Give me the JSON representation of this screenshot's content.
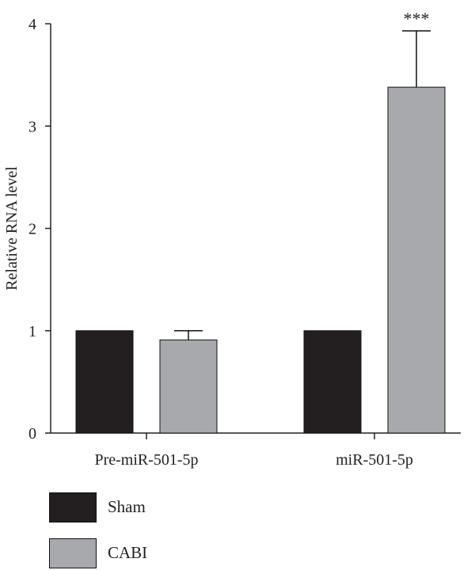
{
  "chart_data": {
    "type": "bar",
    "categories": [
      "Pre-miR-501-5p",
      "miR-501-5p"
    ],
    "ylabel": "Relative RNA level",
    "xlabel": "",
    "ylim": [
      0,
      4
    ],
    "yticks": [
      "0",
      "1",
      "2",
      "3",
      "4"
    ],
    "grid": false,
    "legend_position": "bottom",
    "series": [
      {
        "name": "Sham",
        "color": "#231f20",
        "values": [
          1.0,
          1.0
        ],
        "errors": [
          0,
          0
        ]
      },
      {
        "name": "CABI",
        "color": "#a7a9ac",
        "values": [
          0.91,
          3.38
        ],
        "errors": [
          0.09,
          0.55
        ]
      }
    ],
    "annotations": [
      {
        "category": "miR-501-5p",
        "series": "CABI",
        "text": "***"
      }
    ]
  }
}
